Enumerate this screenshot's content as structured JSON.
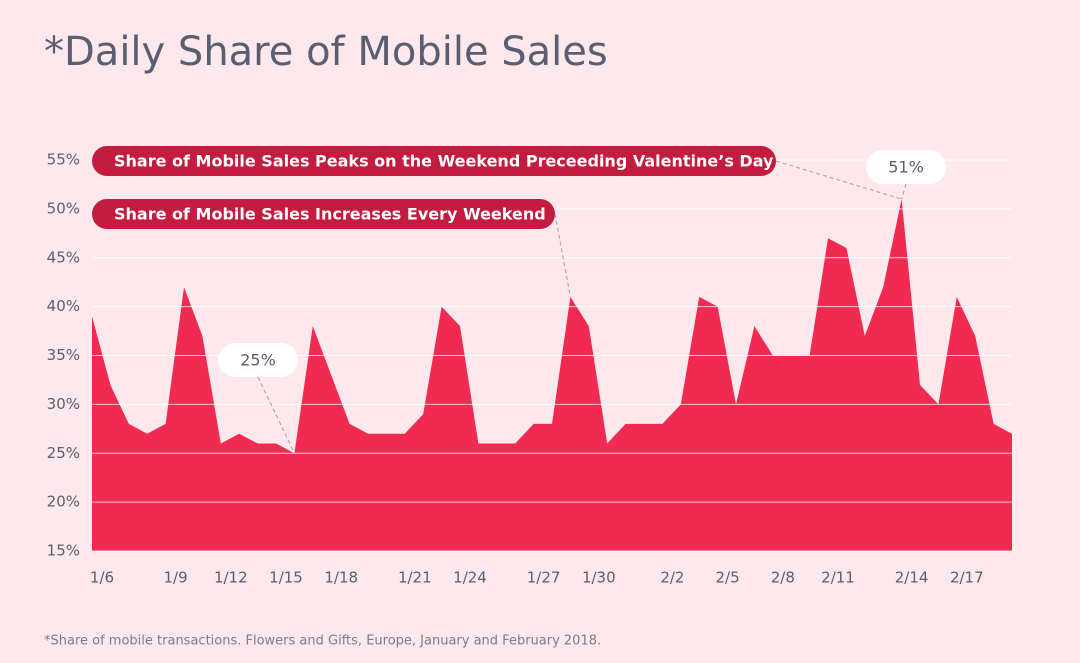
{
  "chart_data": {
    "type": "area",
    "title": "*Daily Share of Mobile Sales",
    "footnote": "*Share of mobile transactions. Flowers and Gifts, Europe, January and February 2018.",
    "annotations": [
      "Share of Mobile Sales Peaks on the Weekend Preceeding Valentine’s Day",
      "Share of Mobile Sales Increases Every Weekend"
    ],
    "color": "#f12a52",
    "categories": [
      "1/6",
      null,
      null,
      null,
      "1/9",
      null,
      null,
      "1/12",
      null,
      null,
      "1/15",
      null,
      null,
      "1/18",
      null,
      null,
      null,
      "1/21",
      null,
      null,
      "1/24",
      null,
      null,
      null,
      "1/27",
      null,
      null,
      "1/30",
      null,
      null,
      null,
      "2/2",
      null,
      null,
      "2/5",
      null,
      null,
      "2/8",
      null,
      null,
      "2/11",
      null,
      null,
      null,
      "2/14",
      null,
      null,
      "2/17",
      null,
      null,
      null
    ],
    "values": [
      39,
      32,
      28,
      27,
      28,
      42,
      37,
      26,
      27,
      26,
      26,
      25,
      38,
      33,
      28,
      27,
      27,
      27,
      29,
      40,
      38,
      26,
      26,
      26,
      28,
      28,
      41,
      38,
      26,
      28,
      28,
      28,
      30,
      41,
      40,
      30,
      38,
      35,
      35,
      35,
      47,
      46,
      37,
      42,
      51,
      32,
      30,
      41,
      37,
      28,
      27
    ],
    "value_labels": [
      null,
      null,
      null,
      null,
      null,
      null,
      null,
      null,
      null,
      null,
      null,
      "25%",
      null,
      null,
      null,
      null,
      null,
      null,
      null,
      null,
      null,
      null,
      null,
      null,
      null,
      null,
      null,
      null,
      null,
      null,
      null,
      null,
      null,
      null,
      null,
      null,
      null,
      null,
      null,
      null,
      null,
      null,
      null,
      null,
      "51%",
      null,
      null,
      null,
      null,
      null,
      null
    ],
    "ylim": [
      15,
      55
    ],
    "yticks": [
      {
        "value": 15,
        "label": "15%"
      },
      {
        "value": 20,
        "label": "20%"
      },
      {
        "value": 25,
        "label": "25%"
      },
      {
        "value": 30,
        "label": "30%"
      },
      {
        "value": 35,
        "label": "35%"
      },
      {
        "value": 40,
        "label": "40%"
      },
      {
        "value": 45,
        "label": "45%"
      },
      {
        "value": 50,
        "label": "50%"
      },
      {
        "value": 55,
        "label": "55%"
      }
    ],
    "grid": true
  }
}
